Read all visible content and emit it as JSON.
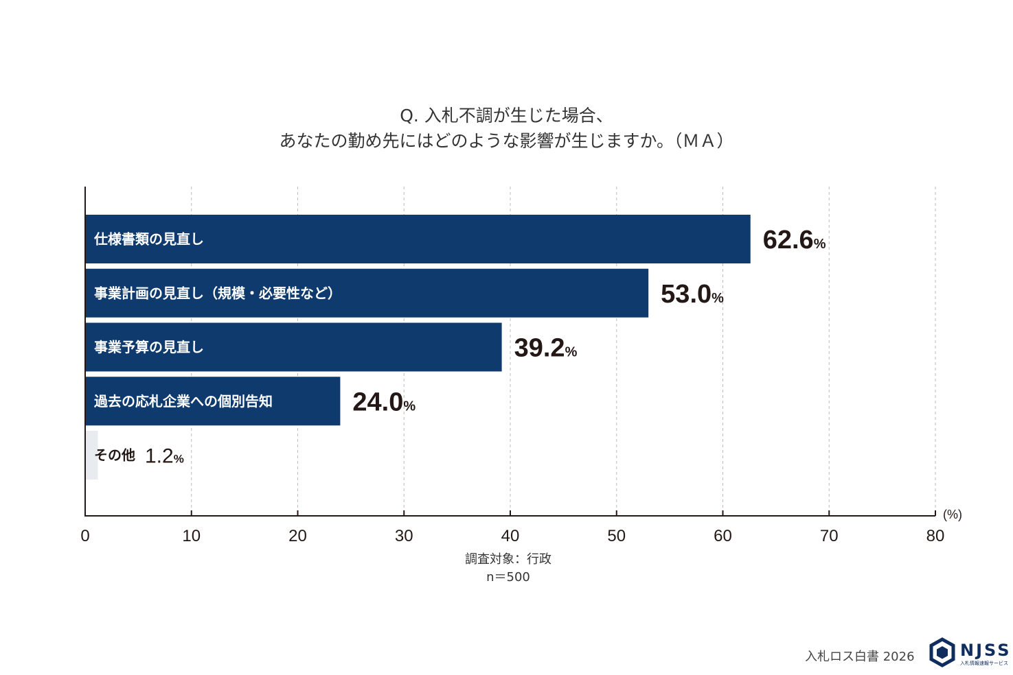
{
  "title": {
    "line1": "Q. 入札不調が生じた場合、",
    "line2": "あなたの勤め先にはどのような影響が生じますか。（ＭＡ）"
  },
  "chart_data": {
    "type": "bar",
    "orientation": "horizontal",
    "categories": [
      "仕様書類の見直し",
      "事業計画の見直し（規模・必要性など）",
      "事業予算の見直し",
      "過去の応札企業への個別告知",
      "その他"
    ],
    "values": [
      62.6,
      53.0,
      39.2,
      24.0,
      1.2
    ],
    "value_labels": [
      "62.6",
      "53.0",
      "39.2",
      "24.0",
      "1.2"
    ],
    "value_suffix": "%",
    "xlim": [
      0,
      80
    ],
    "xticks": [
      0,
      10,
      20,
      30,
      40,
      50,
      60,
      70,
      80
    ],
    "xunit": "(%)",
    "grid": true,
    "colors": {
      "bar": "#0f3a6e",
      "bar_other": "#e8ecf0",
      "label_on_bar": "#ffffff",
      "label_other": "#231815",
      "value_text": "#231815",
      "axis": "#231815",
      "grid": "#bbbbbb"
    }
  },
  "footnote": {
    "target": "調査対象：行政",
    "n": "n＝500"
  },
  "brand": {
    "text": "入札ロス白書 2026",
    "logo_word": "NJSS",
    "logo_sub": "入札情報速報サービス"
  }
}
